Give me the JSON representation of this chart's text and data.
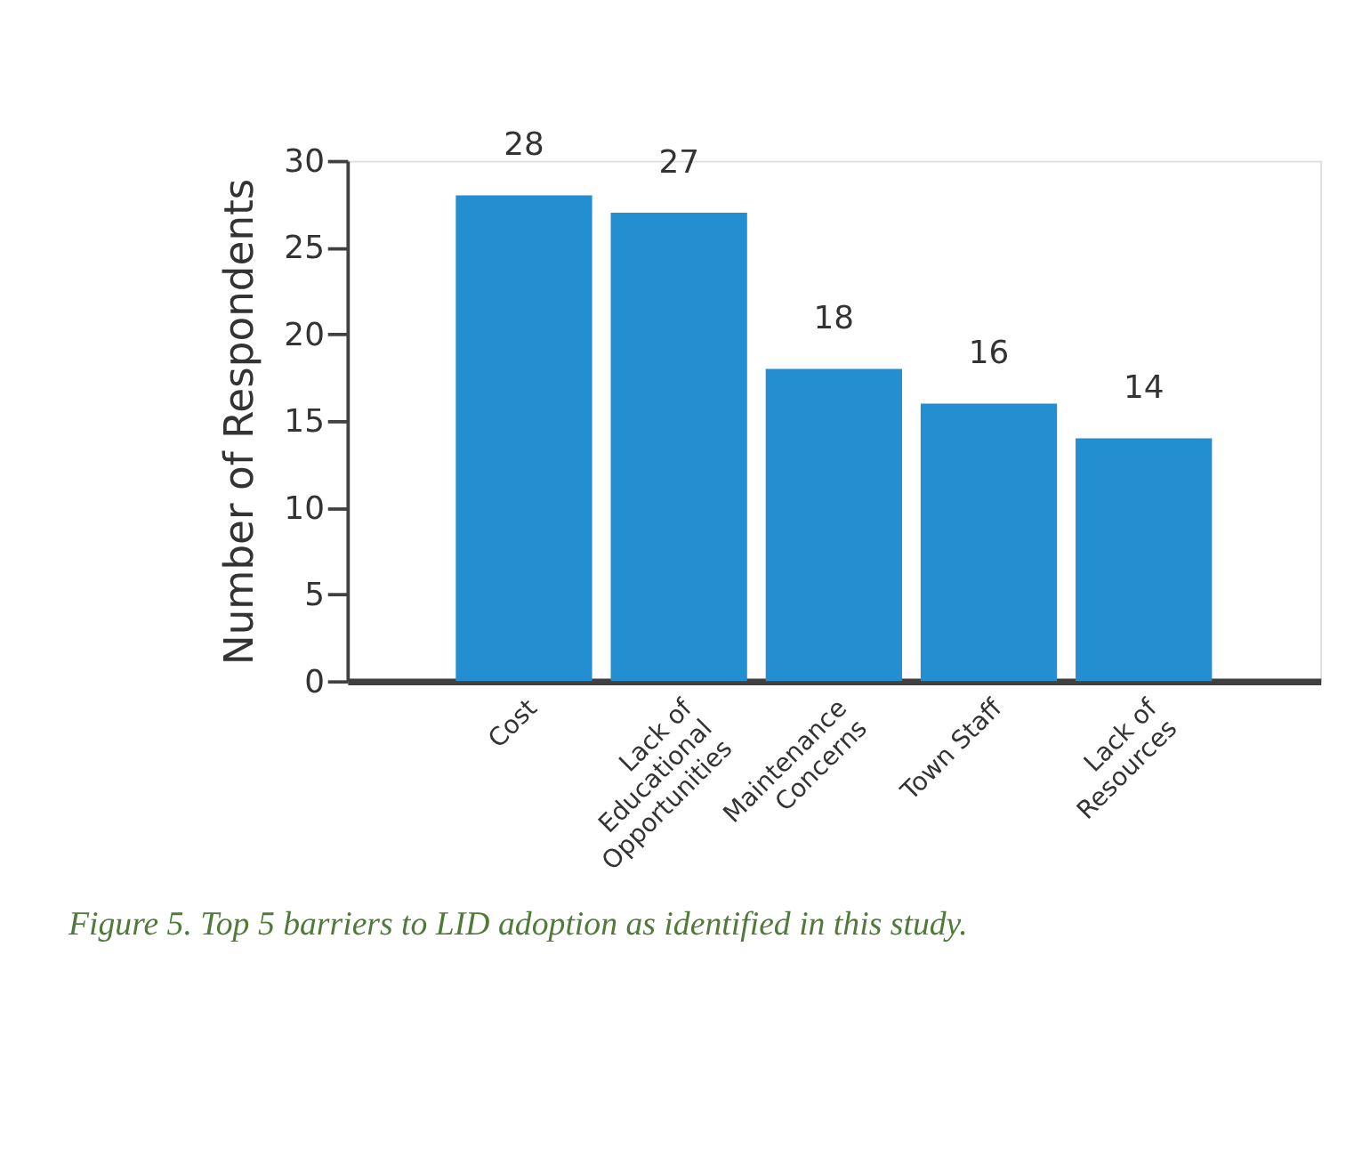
{
  "chart_data": {
    "type": "bar",
    "categories": [
      "Cost",
      "Lack of\nEducational\nOpportunities",
      "Maintenance\nConcerns",
      "Town Staff",
      "Lack of\nResources"
    ],
    "values": [
      28,
      27,
      18,
      16,
      14
    ],
    "color": "#238fd0",
    "ylabel": "Number of Respondents",
    "ylim": [
      0,
      30
    ],
    "yticks": [
      0,
      5,
      10,
      15,
      20,
      25,
      30
    ],
    "grid": false,
    "data_labels": true,
    "annotations": [
      "Figure 5. Top 5 barriers to LID adoption as identified in this study."
    ]
  }
}
